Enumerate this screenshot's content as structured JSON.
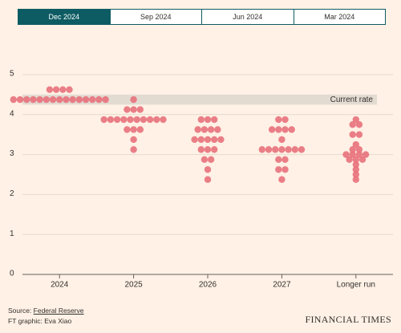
{
  "chart_data": {
    "type": "dotplot",
    "tabs": [
      "Dec 2024",
      "Sep 2024",
      "Jun 2024",
      "Mar 2024"
    ],
    "active_tab": 0,
    "categories": [
      "2024",
      "2025",
      "2026",
      "2027",
      "Longer run"
    ],
    "dots": [
      [
        4.625,
        4.625,
        4.625,
        4.625,
        4.375,
        4.375,
        4.375,
        4.375,
        4.375,
        4.375,
        4.375,
        4.375,
        4.375,
        4.375,
        4.375,
        4.375,
        4.375,
        4.375,
        4.375
      ],
      [
        4.375,
        4.125,
        4.125,
        4.125,
        3.875,
        3.875,
        3.875,
        3.875,
        3.875,
        3.875,
        3.875,
        3.875,
        3.875,
        3.875,
        3.625,
        3.625,
        3.625,
        3.375,
        3.125
      ],
      [
        3.875,
        3.875,
        3.875,
        3.625,
        3.625,
        3.625,
        3.625,
        3.375,
        3.375,
        3.375,
        3.375,
        3.375,
        3.125,
        3.125,
        3.125,
        2.875,
        2.875,
        2.625,
        2.375
      ],
      [
        3.875,
        3.875,
        3.625,
        3.625,
        3.625,
        3.625,
        3.375,
        3.125,
        3.125,
        3.125,
        3.125,
        3.125,
        3.125,
        3.125,
        2.875,
        2.875,
        2.625,
        2.625,
        2.375
      ],
      [
        3.875,
        3.75,
        3.75,
        3.5,
        3.5,
        3.25,
        3.125,
        3.125,
        3.0,
        3.0,
        3.0,
        3.0,
        2.875,
        2.875,
        2.875,
        2.75,
        2.625,
        2.5,
        2.375
      ]
    ],
    "dot_color": "#e8717b",
    "violin_color": "#d4d0cd",
    "current_rate": {
      "label": "Current rate",
      "range": [
        4.25,
        4.5
      ],
      "color": "#e2dbd2"
    },
    "ylim": [
      0,
      5
    ],
    "yticks": [
      0,
      1,
      2,
      3,
      4,
      5
    ],
    "grid": true,
    "source": {
      "prefix": "Source: ",
      "link": "Federal Reserve"
    },
    "credit": "FT graphic: Eva Xiao",
    "brand": "FINANCIAL TIMES"
  }
}
